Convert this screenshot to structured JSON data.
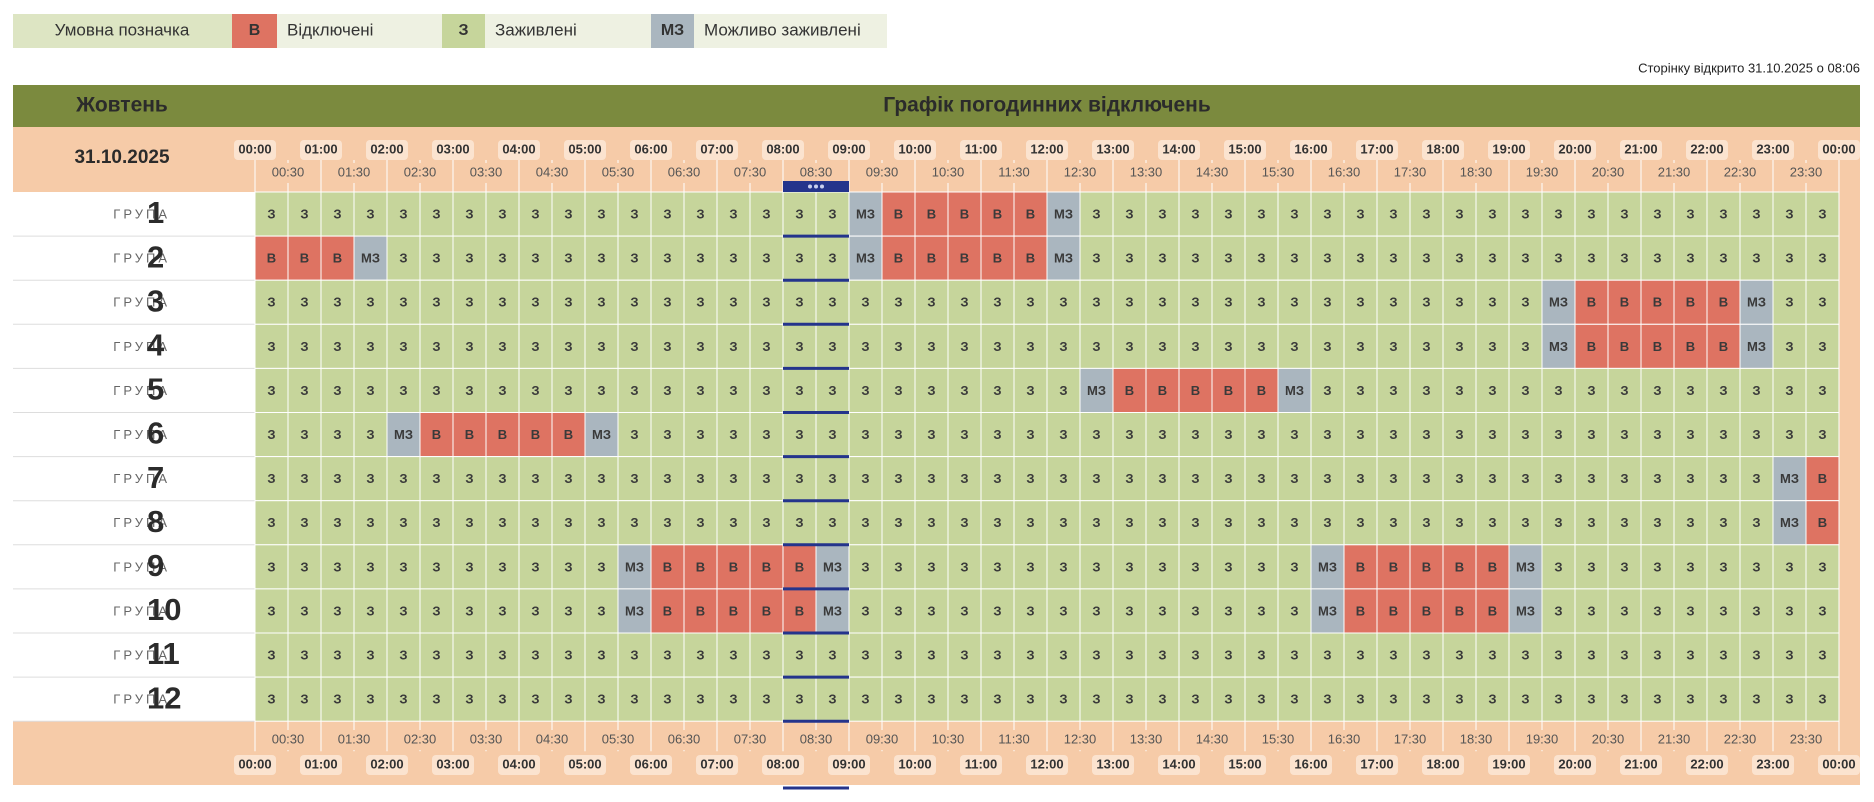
{
  "legend": {
    "title": "Умовна позначка",
    "items": [
      {
        "symbol": "В",
        "label": "Відключені",
        "color": "#de7362"
      },
      {
        "symbol": "З",
        "label": "Заживлені",
        "color": "#c6d59b"
      },
      {
        "symbol": "МЗ",
        "label": "Можливо заживлені",
        "color": "#aab6bf"
      }
    ]
  },
  "note": "Сторінку відкрито 31.10.2025 о 08:06",
  "header": {
    "month": "Жовтень",
    "title": "Графік погодинних відключень",
    "date": "31.10.2025"
  },
  "times": {
    "hours": [
      "00:00",
      "01:00",
      "02:00",
      "03:00",
      "04:00",
      "05:00",
      "06:00",
      "07:00",
      "08:00",
      "09:00",
      "10:00",
      "11:00",
      "12:00",
      "13:00",
      "14:00",
      "15:00",
      "16:00",
      "17:00",
      "18:00",
      "19:00",
      "20:00",
      "21:00",
      "22:00",
      "23:00",
      "00:00"
    ],
    "half_hours": [
      "00:30",
      "01:30",
      "02:30",
      "03:30",
      "04:30",
      "05:30",
      "06:30",
      "07:30",
      "08:30",
      "09:30",
      "10:30",
      "11:30",
      "12:30",
      "13:30",
      "14:30",
      "15:30",
      "16:30",
      "17:30",
      "18:30",
      "19:30",
      "20:30",
      "21:30",
      "22:30",
      "23:30"
    ]
  },
  "table": {
    "rows": [
      {
        "label": "ГРУПА",
        "number": "1",
        "cells": [
          "З",
          "З",
          "З",
          "З",
          "З",
          "З",
          "З",
          "З",
          "З",
          "З",
          "З",
          "З",
          "З",
          "З",
          "З",
          "З",
          "З",
          "З",
          "МЗ",
          "В",
          "В",
          "В",
          "В",
          "В",
          "МЗ",
          "З",
          "З",
          "З",
          "З",
          "З",
          "З",
          "З",
          "З",
          "З",
          "З",
          "З",
          "З",
          "З",
          "З",
          "З",
          "З",
          "З",
          "З",
          "З",
          "З",
          "З",
          "З",
          "З"
        ]
      },
      {
        "label": "ГРУПА",
        "number": "2",
        "cells": [
          "В",
          "В",
          "В",
          "МЗ",
          "З",
          "З",
          "З",
          "З",
          "З",
          "З",
          "З",
          "З",
          "З",
          "З",
          "З",
          "З",
          "З",
          "З",
          "МЗ",
          "В",
          "В",
          "В",
          "В",
          "В",
          "МЗ",
          "З",
          "З",
          "З",
          "З",
          "З",
          "З",
          "З",
          "З",
          "З",
          "З",
          "З",
          "З",
          "З",
          "З",
          "З",
          "З",
          "З",
          "З",
          "З",
          "З",
          "З",
          "З",
          "З"
        ]
      },
      {
        "label": "ГРУПА",
        "number": "3",
        "cells": [
          "З",
          "З",
          "З",
          "З",
          "З",
          "З",
          "З",
          "З",
          "З",
          "З",
          "З",
          "З",
          "З",
          "З",
          "З",
          "З",
          "З",
          "З",
          "З",
          "З",
          "З",
          "З",
          "З",
          "З",
          "З",
          "З",
          "З",
          "З",
          "З",
          "З",
          "З",
          "З",
          "З",
          "З",
          "З",
          "З",
          "З",
          "З",
          "З",
          "МЗ",
          "В",
          "В",
          "В",
          "В",
          "В",
          "МЗ",
          "З",
          "З"
        ]
      },
      {
        "label": "ГРУПА",
        "number": "4",
        "cells": [
          "З",
          "З",
          "З",
          "З",
          "З",
          "З",
          "З",
          "З",
          "З",
          "З",
          "З",
          "З",
          "З",
          "З",
          "З",
          "З",
          "З",
          "З",
          "З",
          "З",
          "З",
          "З",
          "З",
          "З",
          "З",
          "З",
          "З",
          "З",
          "З",
          "З",
          "З",
          "З",
          "З",
          "З",
          "З",
          "З",
          "З",
          "З",
          "З",
          "МЗ",
          "В",
          "В",
          "В",
          "В",
          "В",
          "МЗ",
          "З",
          "З"
        ]
      },
      {
        "label": "ГРУПА",
        "number": "5",
        "cells": [
          "З",
          "З",
          "З",
          "З",
          "З",
          "З",
          "З",
          "З",
          "З",
          "З",
          "З",
          "З",
          "З",
          "З",
          "З",
          "З",
          "З",
          "З",
          "З",
          "З",
          "З",
          "З",
          "З",
          "З",
          "З",
          "МЗ",
          "В",
          "В",
          "В",
          "В",
          "В",
          "МЗ",
          "З",
          "З",
          "З",
          "З",
          "З",
          "З",
          "З",
          "З",
          "З",
          "З",
          "З",
          "З",
          "З",
          "З",
          "З",
          "З"
        ]
      },
      {
        "label": "ГРУПА",
        "number": "6",
        "cells": [
          "З",
          "З",
          "З",
          "З",
          "МЗ",
          "В",
          "В",
          "В",
          "В",
          "В",
          "МЗ",
          "З",
          "З",
          "З",
          "З",
          "З",
          "З",
          "З",
          "З",
          "З",
          "З",
          "З",
          "З",
          "З",
          "З",
          "З",
          "З",
          "З",
          "З",
          "З",
          "З",
          "З",
          "З",
          "З",
          "З",
          "З",
          "З",
          "З",
          "З",
          "З",
          "З",
          "З",
          "З",
          "З",
          "З",
          "З",
          "З",
          "З"
        ]
      },
      {
        "label": "ГРУПА",
        "number": "7",
        "cells": [
          "З",
          "З",
          "З",
          "З",
          "З",
          "З",
          "З",
          "З",
          "З",
          "З",
          "З",
          "З",
          "З",
          "З",
          "З",
          "З",
          "З",
          "З",
          "З",
          "З",
          "З",
          "З",
          "З",
          "З",
          "З",
          "З",
          "З",
          "З",
          "З",
          "З",
          "З",
          "З",
          "З",
          "З",
          "З",
          "З",
          "З",
          "З",
          "З",
          "З",
          "З",
          "З",
          "З",
          "З",
          "З",
          "З",
          "МЗ",
          "В"
        ]
      },
      {
        "label": "ГРУПА",
        "number": "8",
        "cells": [
          "З",
          "З",
          "З",
          "З",
          "З",
          "З",
          "З",
          "З",
          "З",
          "З",
          "З",
          "З",
          "З",
          "З",
          "З",
          "З",
          "З",
          "З",
          "З",
          "З",
          "З",
          "З",
          "З",
          "З",
          "З",
          "З",
          "З",
          "З",
          "З",
          "З",
          "З",
          "З",
          "З",
          "З",
          "З",
          "З",
          "З",
          "З",
          "З",
          "З",
          "З",
          "З",
          "З",
          "З",
          "З",
          "З",
          "МЗ",
          "В"
        ]
      },
      {
        "label": "ГРУПА",
        "number": "9",
        "cells": [
          "З",
          "З",
          "З",
          "З",
          "З",
          "З",
          "З",
          "З",
          "З",
          "З",
          "З",
          "МЗ",
          "В",
          "В",
          "В",
          "В",
          "В",
          "МЗ",
          "З",
          "З",
          "З",
          "З",
          "З",
          "З",
          "З",
          "З",
          "З",
          "З",
          "З",
          "З",
          "З",
          "З",
          "МЗ",
          "В",
          "В",
          "В",
          "В",
          "В",
          "МЗ",
          "З",
          "З",
          "З",
          "З",
          "З",
          "З",
          "З",
          "З",
          "З"
        ]
      },
      {
        "label": "ГРУПА",
        "number": "10",
        "cells": [
          "З",
          "З",
          "З",
          "З",
          "З",
          "З",
          "З",
          "З",
          "З",
          "З",
          "З",
          "МЗ",
          "В",
          "В",
          "В",
          "В",
          "В",
          "МЗ",
          "З",
          "З",
          "З",
          "З",
          "З",
          "З",
          "З",
          "З",
          "З",
          "З",
          "З",
          "З",
          "З",
          "З",
          "МЗ",
          "В",
          "В",
          "В",
          "В",
          "В",
          "МЗ",
          "З",
          "З",
          "З",
          "З",
          "З",
          "З",
          "З",
          "З",
          "З"
        ]
      },
      {
        "label": "ГРУПА",
        "number": "11",
        "cells": [
          "З",
          "З",
          "З",
          "З",
          "З",
          "З",
          "З",
          "З",
          "З",
          "З",
          "З",
          "З",
          "З",
          "З",
          "З",
          "З",
          "З",
          "З",
          "З",
          "З",
          "З",
          "З",
          "З",
          "З",
          "З",
          "З",
          "З",
          "З",
          "З",
          "З",
          "З",
          "З",
          "З",
          "З",
          "З",
          "З",
          "З",
          "З",
          "З",
          "З",
          "З",
          "З",
          "З",
          "З",
          "З",
          "З",
          "З",
          "З"
        ]
      },
      {
        "label": "ГРУПА",
        "number": "12",
        "cells": [
          "З",
          "З",
          "З",
          "З",
          "З",
          "З",
          "З",
          "З",
          "З",
          "З",
          "З",
          "З",
          "З",
          "З",
          "З",
          "З",
          "З",
          "З",
          "З",
          "З",
          "З",
          "З",
          "З",
          "З",
          "З",
          "З",
          "З",
          "З",
          "З",
          "З",
          "З",
          "З",
          "З",
          "З",
          "З",
          "З",
          "З",
          "З",
          "З",
          "З",
          "З",
          "З",
          "З",
          "З",
          "З",
          "З",
          "З",
          "З"
        ]
      }
    ]
  }
}
